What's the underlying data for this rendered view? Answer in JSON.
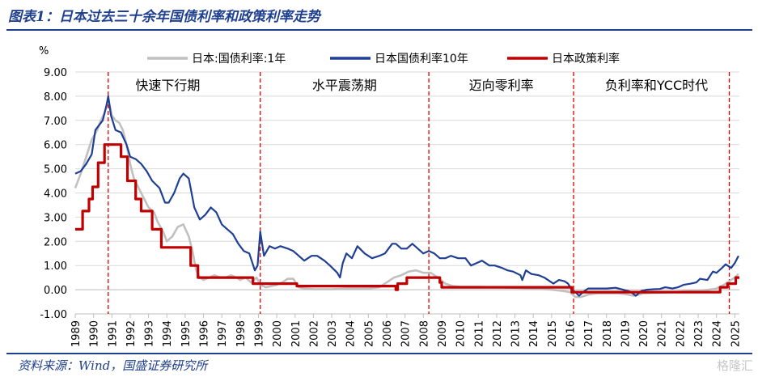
{
  "header": {
    "title": "图表1：日本过去三十余年国债利率和政策利率走势"
  },
  "footer": {
    "source": "资料来源：Wind，国盛证券研究所",
    "watermark": "格隆汇"
  },
  "chart_data": {
    "type": "line",
    "unit_label": "%",
    "ylim": [
      -1.0,
      9.0
    ],
    "yticks": [
      "-1.00",
      "0.00",
      "1.00",
      "2.00",
      "3.00",
      "4.00",
      "5.00",
      "6.00",
      "7.00",
      "8.00",
      "9.00"
    ],
    "xlim": [
      1989.0,
      2025.25
    ],
    "xticks": [
      "1989",
      "1990",
      "1991",
      "1992",
      "1993",
      "1994",
      "1995",
      "1996",
      "1997",
      "1998",
      "1999",
      "2000",
      "2001",
      "2002",
      "2003",
      "2004",
      "2005",
      "2006",
      "2007",
      "2008",
      "2009",
      "2010",
      "2011",
      "2012",
      "2013",
      "2014",
      "2015",
      "2016",
      "2017",
      "2018",
      "2019",
      "2020",
      "2021",
      "2022",
      "2023",
      "2024",
      "2025"
    ],
    "grid": "horizontal",
    "legend_position": "top",
    "series": [
      {
        "name": "日本:国债利率:1年",
        "color": "#c0c0c0",
        "points": [
          [
            1989.0,
            4.2
          ],
          [
            1989.3,
            4.8
          ],
          [
            1989.6,
            5.5
          ],
          [
            1989.9,
            6.2
          ],
          [
            1990.2,
            6.6
          ],
          [
            1990.4,
            7.0
          ],
          [
            1990.6,
            7.3
          ],
          [
            1990.8,
            7.9
          ],
          [
            1991.0,
            7.2
          ],
          [
            1991.2,
            7.0
          ],
          [
            1991.4,
            6.9
          ],
          [
            1991.6,
            6.6
          ],
          [
            1991.8,
            6.0
          ],
          [
            1992.0,
            5.2
          ],
          [
            1992.2,
            4.6
          ],
          [
            1992.4,
            4.3
          ],
          [
            1992.6,
            4.0
          ],
          [
            1992.8,
            3.7
          ],
          [
            1993.0,
            3.4
          ],
          [
            1993.3,
            3.2
          ],
          [
            1993.5,
            2.8
          ],
          [
            1993.8,
            2.4
          ],
          [
            1994.0,
            2.0
          ],
          [
            1994.3,
            2.2
          ],
          [
            1994.6,
            2.6
          ],
          [
            1994.9,
            2.7
          ],
          [
            1995.2,
            2.2
          ],
          [
            1995.4,
            1.6
          ],
          [
            1995.6,
            0.8
          ],
          [
            1995.8,
            0.5
          ],
          [
            1996.0,
            0.4
          ],
          [
            1996.3,
            0.5
          ],
          [
            1996.6,
            0.6
          ],
          [
            1996.9,
            0.5
          ],
          [
            1997.2,
            0.5
          ],
          [
            1997.5,
            0.6
          ],
          [
            1997.8,
            0.5
          ],
          [
            1998.0,
            0.4
          ],
          [
            1998.3,
            0.5
          ],
          [
            1998.6,
            0.3
          ],
          [
            1998.9,
            0.5
          ],
          [
            1999.1,
            0.2
          ],
          [
            1999.4,
            0.1
          ],
          [
            1999.7,
            0.15
          ],
          [
            2000.0,
            0.2
          ],
          [
            2000.3,
            0.3
          ],
          [
            2000.6,
            0.45
          ],
          [
            2000.9,
            0.45
          ],
          [
            2001.2,
            0.1
          ],
          [
            2001.5,
            0.05
          ],
          [
            2002.0,
            0.02
          ],
          [
            2003.0,
            0.02
          ],
          [
            2004.0,
            0.05
          ],
          [
            2005.0,
            0.05
          ],
          [
            2005.6,
            0.1
          ],
          [
            2006.0,
            0.3
          ],
          [
            2006.4,
            0.5
          ],
          [
            2006.8,
            0.6
          ],
          [
            2007.2,
            0.75
          ],
          [
            2007.6,
            0.8
          ],
          [
            2008.0,
            0.7
          ],
          [
            2008.4,
            0.7
          ],
          [
            2008.8,
            0.5
          ],
          [
            2009.2,
            0.25
          ],
          [
            2009.6,
            0.15
          ],
          [
            2010.0,
            0.12
          ],
          [
            2011.0,
            0.12
          ],
          [
            2012.0,
            0.1
          ],
          [
            2013.0,
            0.08
          ],
          [
            2014.0,
            0.05
          ],
          [
            2015.0,
            0.0
          ],
          [
            2015.6,
            -0.05
          ],
          [
            2016.0,
            -0.1
          ],
          [
            2016.3,
            -0.3
          ],
          [
            2016.6,
            -0.3
          ],
          [
            2017.0,
            -0.2
          ],
          [
            2017.5,
            -0.15
          ],
          [
            2018.0,
            -0.15
          ],
          [
            2018.6,
            -0.15
          ],
          [
            2019.0,
            -0.18
          ],
          [
            2019.5,
            -0.25
          ],
          [
            2020.0,
            -0.15
          ],
          [
            2020.5,
            -0.13
          ],
          [
            2021.0,
            -0.12
          ],
          [
            2022.0,
            -0.08
          ],
          [
            2022.6,
            -0.05
          ],
          [
            2023.0,
            -0.04
          ],
          [
            2023.6,
            0.0
          ],
          [
            2024.0,
            0.05
          ],
          [
            2024.4,
            0.2
          ],
          [
            2024.7,
            0.35
          ],
          [
            2025.0,
            0.5
          ],
          [
            2025.2,
            0.65
          ]
        ]
      },
      {
        "name": "日本国债利率10年",
        "color": "#1e3f93",
        "points": [
          [
            1989.0,
            4.8
          ],
          [
            1989.3,
            4.9
          ],
          [
            1989.6,
            5.2
          ],
          [
            1989.9,
            5.6
          ],
          [
            1990.1,
            6.6
          ],
          [
            1990.3,
            6.8
          ],
          [
            1990.5,
            7.0
          ],
          [
            1990.7,
            7.6
          ],
          [
            1990.8,
            8.0
          ],
          [
            1990.95,
            7.2
          ],
          [
            1991.2,
            6.6
          ],
          [
            1991.5,
            6.5
          ],
          [
            1991.8,
            6.0
          ],
          [
            1992.0,
            5.5
          ],
          [
            1992.3,
            5.4
          ],
          [
            1992.6,
            5.2
          ],
          [
            1992.9,
            4.9
          ],
          [
            1993.2,
            4.5
          ],
          [
            1993.6,
            4.2
          ],
          [
            1993.9,
            3.6
          ],
          [
            1994.1,
            3.6
          ],
          [
            1994.4,
            4.0
          ],
          [
            1994.7,
            4.6
          ],
          [
            1994.9,
            4.8
          ],
          [
            1995.2,
            4.6
          ],
          [
            1995.5,
            3.4
          ],
          [
            1995.8,
            2.9
          ],
          [
            1996.1,
            3.1
          ],
          [
            1996.4,
            3.4
          ],
          [
            1996.7,
            3.2
          ],
          [
            1997.0,
            2.7
          ],
          [
            1997.3,
            2.5
          ],
          [
            1997.6,
            2.3
          ],
          [
            1997.9,
            1.9
          ],
          [
            1998.2,
            1.6
          ],
          [
            1998.5,
            1.5
          ],
          [
            1998.8,
            0.8
          ],
          [
            1998.95,
            1.0
          ],
          [
            1999.1,
            2.4
          ],
          [
            1999.3,
            1.4
          ],
          [
            1999.6,
            1.8
          ],
          [
            1999.9,
            1.7
          ],
          [
            2000.2,
            1.8
          ],
          [
            2000.6,
            1.7
          ],
          [
            2000.9,
            1.6
          ],
          [
            2001.2,
            1.4
          ],
          [
            2001.5,
            1.2
          ],
          [
            2001.9,
            1.4
          ],
          [
            2002.2,
            1.4
          ],
          [
            2002.6,
            1.2
          ],
          [
            2002.9,
            1.0
          ],
          [
            2003.3,
            0.7
          ],
          [
            2003.45,
            0.5
          ],
          [
            2003.6,
            1.1
          ],
          [
            2003.8,
            1.5
          ],
          [
            2004.1,
            1.3
          ],
          [
            2004.4,
            1.8
          ],
          [
            2004.8,
            1.5
          ],
          [
            2005.2,
            1.3
          ],
          [
            2005.6,
            1.4
          ],
          [
            2005.9,
            1.5
          ],
          [
            2006.3,
            1.9
          ],
          [
            2006.5,
            1.9
          ],
          [
            2006.8,
            1.7
          ],
          [
            2007.1,
            1.7
          ],
          [
            2007.4,
            1.9
          ],
          [
            2007.7,
            1.7
          ],
          [
            2008.0,
            1.5
          ],
          [
            2008.3,
            1.6
          ],
          [
            2008.6,
            1.5
          ],
          [
            2008.9,
            1.3
          ],
          [
            2009.2,
            1.3
          ],
          [
            2009.5,
            1.4
          ],
          [
            2009.9,
            1.3
          ],
          [
            2010.3,
            1.3
          ],
          [
            2010.6,
            1.0
          ],
          [
            2010.9,
            1.1
          ],
          [
            2011.2,
            1.2
          ],
          [
            2011.6,
            1.0
          ],
          [
            2011.9,
            1.0
          ],
          [
            2012.3,
            0.9
          ],
          [
            2012.6,
            0.8
          ],
          [
            2012.9,
            0.75
          ],
          [
            2013.3,
            0.6
          ],
          [
            2013.4,
            0.4
          ],
          [
            2013.6,
            0.8
          ],
          [
            2013.9,
            0.65
          ],
          [
            2014.3,
            0.6
          ],
          [
            2014.6,
            0.5
          ],
          [
            2014.9,
            0.35
          ],
          [
            2015.1,
            0.25
          ],
          [
            2015.4,
            0.4
          ],
          [
            2015.7,
            0.35
          ],
          [
            2015.9,
            0.25
          ],
          [
            2016.1,
            0.0
          ],
          [
            2016.3,
            -0.1
          ],
          [
            2016.5,
            -0.25
          ],
          [
            2016.8,
            -0.05
          ],
          [
            2017.0,
            0.05
          ],
          [
            2017.5,
            0.05
          ],
          [
            2018.0,
            0.05
          ],
          [
            2018.5,
            0.08
          ],
          [
            2018.9,
            0.0
          ],
          [
            2019.3,
            -0.08
          ],
          [
            2019.6,
            -0.25
          ],
          [
            2019.9,
            -0.05
          ],
          [
            2020.2,
            0.0
          ],
          [
            2020.6,
            0.02
          ],
          [
            2020.9,
            0.03
          ],
          [
            2021.2,
            0.1
          ],
          [
            2021.6,
            0.05
          ],
          [
            2021.9,
            0.1
          ],
          [
            2022.2,
            0.2
          ],
          [
            2022.6,
            0.25
          ],
          [
            2022.9,
            0.3
          ],
          [
            2023.1,
            0.45
          ],
          [
            2023.5,
            0.4
          ],
          [
            2023.8,
            0.75
          ],
          [
            2024.0,
            0.7
          ],
          [
            2024.3,
            0.9
          ],
          [
            2024.5,
            1.05
          ],
          [
            2024.8,
            0.9
          ],
          [
            2025.0,
            1.1
          ],
          [
            2025.2,
            1.4
          ]
        ]
      },
      {
        "name": "日本政策利率",
        "color": "#c00000",
        "points": [
          [
            1989.0,
            2.5
          ],
          [
            1989.4,
            2.5
          ],
          [
            1989.4,
            3.25
          ],
          [
            1989.75,
            3.25
          ],
          [
            1989.75,
            3.75
          ],
          [
            1989.95,
            3.75
          ],
          [
            1989.95,
            4.25
          ],
          [
            1990.25,
            4.25
          ],
          [
            1990.25,
            5.25
          ],
          [
            1990.6,
            5.25
          ],
          [
            1990.6,
            6.0
          ],
          [
            1991.5,
            6.0
          ],
          [
            1991.5,
            5.5
          ],
          [
            1991.85,
            5.5
          ],
          [
            1991.85,
            4.5
          ],
          [
            1992.3,
            4.5
          ],
          [
            1992.3,
            3.75
          ],
          [
            1992.6,
            3.75
          ],
          [
            1992.6,
            3.25
          ],
          [
            1993.2,
            3.25
          ],
          [
            1993.2,
            2.5
          ],
          [
            1993.7,
            2.5
          ],
          [
            1993.7,
            1.75
          ],
          [
            1995.3,
            1.75
          ],
          [
            1995.3,
            1.0
          ],
          [
            1995.7,
            1.0
          ],
          [
            1995.7,
            0.5
          ],
          [
            1998.7,
            0.5
          ],
          [
            1998.7,
            0.25
          ],
          [
            1999.2,
            0.25
          ],
          [
            1999.2,
            0.25
          ],
          [
            2000.6,
            0.25
          ],
          [
            2000.6,
            0.25
          ],
          [
            2001.1,
            0.25
          ],
          [
            2001.1,
            0.15
          ],
          [
            2006.5,
            0.15
          ],
          [
            2006.5,
            0.0
          ],
          [
            2006.6,
            0.0
          ],
          [
            2006.6,
            0.25
          ],
          [
            2007.1,
            0.25
          ],
          [
            2007.1,
            0.5
          ],
          [
            2008.9,
            0.5
          ],
          [
            2008.9,
            0.3
          ],
          [
            2009.0,
            0.3
          ],
          [
            2009.0,
            0.1
          ],
          [
            2016.1,
            0.1
          ],
          [
            2016.1,
            -0.1
          ],
          [
            2024.2,
            -0.1
          ],
          [
            2024.2,
            0.1
          ],
          [
            2024.6,
            0.1
          ],
          [
            2024.6,
            0.25
          ],
          [
            2025.05,
            0.25
          ],
          [
            2025.05,
            0.5
          ],
          [
            2025.25,
            0.5
          ]
        ]
      }
    ],
    "periods": [
      {
        "label": "快速下行期",
        "start": 1989.0,
        "end": 1999.1
      },
      {
        "label": "水平震荡期",
        "start": 1999.1,
        "end": 2008.3
      },
      {
        "label": "迈向零利率",
        "start": 2008.3,
        "end": 2016.2
      },
      {
        "label": "负利率和YCC时代",
        "start": 2016.2,
        "end": 2025.25
      }
    ],
    "dividers": [
      1990.8,
      1999.1,
      2008.3,
      2016.2,
      2024.7
    ]
  }
}
